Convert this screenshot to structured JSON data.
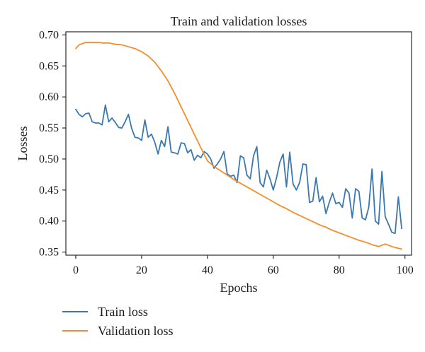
{
  "chart_data": {
    "type": "line",
    "title": "Train and validation losses",
    "xlabel": "Epochs",
    "ylabel": "Losses",
    "xlim": [
      -3,
      102
    ],
    "ylim": [
      0.345,
      0.705
    ],
    "xticks": [
      0,
      20,
      40,
      60,
      80,
      100
    ],
    "xtick_labels": [
      "0",
      "20",
      "40",
      "60",
      "80",
      "100"
    ],
    "yticks": [
      0.35,
      0.4,
      0.45,
      0.5,
      0.55,
      0.6,
      0.65,
      0.7
    ],
    "ytick_labels": [
      "0.35",
      "0.40",
      "0.45",
      "0.50",
      "0.55",
      "0.60",
      "0.65",
      "0.70"
    ],
    "grid": false,
    "legend_position": "below",
    "series": [
      {
        "name": "Train loss",
        "color": "#3a78b0",
        "x": [
          0,
          1,
          2,
          3,
          4,
          5,
          6,
          7,
          8,
          9,
          10,
          11,
          12,
          13,
          14,
          15,
          16,
          17,
          18,
          19,
          20,
          21,
          22,
          23,
          24,
          25,
          26,
          27,
          28,
          29,
          30,
          31,
          32,
          33,
          34,
          35,
          36,
          37,
          38,
          39,
          40,
          41,
          42,
          43,
          44,
          45,
          46,
          47,
          48,
          49,
          50,
          51,
          52,
          53,
          54,
          55,
          56,
          57,
          58,
          59,
          60,
          61,
          62,
          63,
          64,
          65,
          66,
          67,
          68,
          69,
          70,
          71,
          72,
          73,
          74,
          75,
          76,
          77,
          78,
          79,
          80,
          81,
          82,
          83,
          84,
          85,
          86,
          87,
          88,
          89,
          90,
          91,
          92,
          93,
          94,
          95,
          96,
          97,
          98,
          99
        ],
        "values": [
          0.58,
          0.572,
          0.568,
          0.573,
          0.574,
          0.56,
          0.558,
          0.558,
          0.555,
          0.587,
          0.56,
          0.566,
          0.559,
          0.551,
          0.55,
          0.56,
          0.572,
          0.549,
          0.535,
          0.534,
          0.53,
          0.563,
          0.535,
          0.54,
          0.527,
          0.508,
          0.53,
          0.52,
          0.552,
          0.511,
          0.51,
          0.508,
          0.526,
          0.525,
          0.51,
          0.515,
          0.498,
          0.506,
          0.502,
          0.512,
          0.508,
          0.5,
          0.485,
          0.492,
          0.5,
          0.512,
          0.476,
          0.472,
          0.474,
          0.462,
          0.505,
          0.502,
          0.474,
          0.468,
          0.505,
          0.52,
          0.462,
          0.455,
          0.482,
          0.468,
          0.45,
          0.47,
          0.495,
          0.508,
          0.455,
          0.511,
          0.46,
          0.45,
          0.462,
          0.492,
          0.491,
          0.43,
          0.432,
          0.47,
          0.431,
          0.44,
          0.412,
          0.43,
          0.445,
          0.428,
          0.43,
          0.422,
          0.452,
          0.445,
          0.405,
          0.452,
          0.448,
          0.405,
          0.402,
          0.422,
          0.484,
          0.4,
          0.395,
          0.48,
          0.407,
          0.395,
          0.382,
          0.38,
          0.439,
          0.388
        ]
      },
      {
        "name": "Validation loss",
        "color": "#f28e2b",
        "x": [
          0,
          1,
          2,
          3,
          4,
          5,
          6,
          7,
          8,
          9,
          10,
          12,
          14,
          16,
          18,
          20,
          22,
          24,
          26,
          28,
          30,
          32,
          34,
          36,
          38,
          40,
          42,
          44,
          46,
          48,
          50,
          52,
          54,
          56,
          58,
          60,
          62,
          64,
          66,
          68,
          70,
          72,
          74,
          76,
          78,
          80,
          82,
          84,
          86,
          88,
          90,
          92,
          94,
          96,
          98,
          99
        ],
        "values": [
          0.678,
          0.684,
          0.686,
          0.688,
          0.688,
          0.688,
          0.688,
          0.688,
          0.687,
          0.687,
          0.687,
          0.685,
          0.684,
          0.681,
          0.678,
          0.673,
          0.666,
          0.656,
          0.642,
          0.626,
          0.606,
          0.584,
          0.562,
          0.54,
          0.518,
          0.497,
          0.488,
          0.481,
          0.474,
          0.467,
          0.461,
          0.455,
          0.449,
          0.443,
          0.437,
          0.431,
          0.425,
          0.42,
          0.414,
          0.409,
          0.404,
          0.399,
          0.394,
          0.39,
          0.385,
          0.381,
          0.377,
          0.373,
          0.369,
          0.366,
          0.362,
          0.359,
          0.363,
          0.359,
          0.356,
          0.355
        ]
      }
    ]
  }
}
